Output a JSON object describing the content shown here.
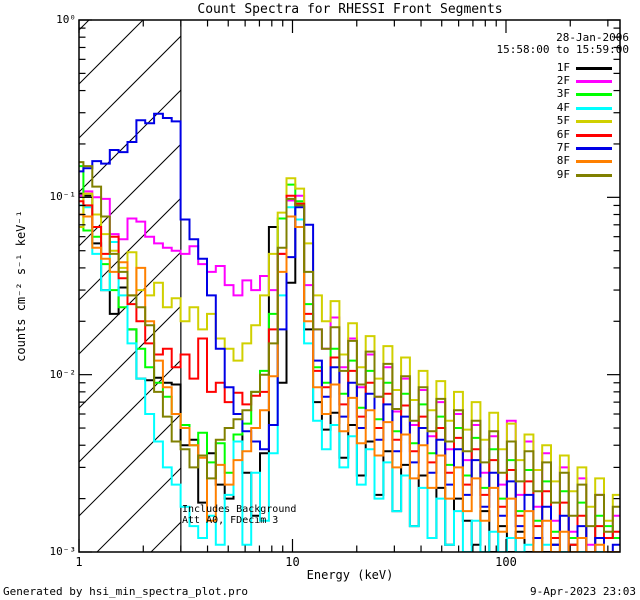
{
  "title": "Count Spectra for RHESSI Front Segments",
  "header": {
    "date": "28-Jan-2006",
    "time_range": "15:58:00 to 15:59:00"
  },
  "annotations": {
    "line1": "Includes Background",
    "line2": "Att A0, FDecim 3"
  },
  "footer": {
    "generated_by": "Generated by hsi_min_spectra_plot.pro",
    "timestamp": "9-Apr-2023 23:03"
  },
  "axes": {
    "xlabel": "Energy (keV)",
    "ylabel": "counts cm⁻² s⁻¹ keV⁻¹",
    "x_ticks": [
      {
        "value": 1,
        "label": "1"
      },
      {
        "value": 10,
        "label": "10"
      },
      {
        "value": 100,
        "label": "100"
      }
    ],
    "y_ticks": [
      {
        "value": 1,
        "label": "10⁰"
      },
      {
        "value": 0.1,
        "label": "10⁻¹"
      },
      {
        "value": 0.01,
        "label": "10⁻²"
      },
      {
        "value": 0.001,
        "label": "10⁻³"
      }
    ]
  },
  "hatch_region": {
    "from_keV": 1,
    "to_keV": 3
  },
  "chart_data": {
    "type": "line",
    "subtype": "step-histogram",
    "x_scale": "log",
    "y_scale": "log",
    "xlim": [
      1,
      342
    ],
    "ylim": [
      0.001,
      1
    ],
    "title": "Count Spectra for RHESSI Front Segments",
    "xlabel": "Energy (keV)",
    "ylabel": "counts cm^-2 s^-1 keV^-1",
    "legend_position": "top-right",
    "grid": false,
    "energies_keV": [
      1.0,
      1.1,
      1.21,
      1.33,
      1.46,
      1.61,
      1.77,
      1.95,
      2.14,
      2.36,
      2.59,
      2.85,
      3.14,
      3.45,
      3.79,
      4.17,
      4.59,
      5.05,
      5.55,
      6.11,
      6.72,
      7.39,
      8.13,
      8.94,
      9.83,
      10.8,
      11.9,
      13.1,
      14.4,
      15.8,
      17.4,
      19.1,
      21.0,
      23.1,
      25.4,
      28.0,
      30.8,
      33.8,
      37.2,
      40.9,
      45.0,
      49.5,
      54.4,
      59.9,
      65.9,
      72.4,
      79.6,
      87.6,
      96.3,
      105.9,
      116.5,
      128.1,
      140.9,
      155.0,
      170.5,
      187.5,
      206.2,
      226.8,
      249.5,
      274.4,
      301.8,
      332.0
    ],
    "series": [
      {
        "name": "1F",
        "color": "#000000",
        "counts": [
          0.105,
          0.102,
          0.055,
          0.03,
          0.022,
          0.031,
          0.018,
          0.0095,
          0.0093,
          0.0096,
          0.009,
          0.0088,
          0.004,
          0.0043,
          0.0019,
          0.0036,
          0.0024,
          0.002,
          0.0046,
          0.0028,
          0.0016,
          0.0036,
          0.068,
          0.009,
          0.033,
          0.092,
          0.018,
          0.007,
          0.0049,
          0.0061,
          0.0034,
          0.0052,
          0.0027,
          0.0042,
          0.0021,
          0.0037,
          0.0017,
          0.0031,
          0.0014,
          0.0027,
          0.0012,
          0.0023,
          0.0011,
          0.002,
          0.0015,
          0.0011,
          0.0017,
          0.001,
          0.0014,
          0.001,
          0.0013,
          0.001,
          0.0012,
          0.001,
          0.0011,
          0.001,
          0.0011,
          0.001,
          0.001,
          0.001,
          0.001,
          0.001
        ]
      },
      {
        "name": "2F",
        "color": "#ff00ff",
        "counts": [
          0.102,
          0.108,
          0.1,
          0.098,
          0.062,
          0.058,
          0.076,
          0.073,
          0.06,
          0.055,
          0.052,
          0.05,
          0.048,
          0.053,
          0.042,
          0.038,
          0.041,
          0.032,
          0.028,
          0.034,
          0.03,
          0.036,
          0.03,
          0.048,
          0.096,
          0.102,
          0.032,
          0.018,
          0.014,
          0.021,
          0.011,
          0.016,
          0.0085,
          0.013,
          0.0075,
          0.011,
          0.0062,
          0.0095,
          0.0052,
          0.0082,
          0.0045,
          0.007,
          0.0038,
          0.006,
          0.0033,
          0.0052,
          0.0028,
          0.0045,
          0.0024,
          0.0055,
          0.0021,
          0.0042,
          0.0018,
          0.0036,
          0.0015,
          0.003,
          0.0013,
          0.0026,
          0.0011,
          0.0021,
          0.0012,
          0.0016
        ]
      },
      {
        "name": "3F",
        "color": "#00ff00",
        "counts": [
          0.15,
          0.065,
          0.06,
          0.042,
          0.03,
          0.024,
          0.018,
          0.014,
          0.011,
          0.009,
          0.0075,
          0.006,
          0.0052,
          0.004,
          0.0047,
          0.0032,
          0.0041,
          0.0028,
          0.0046,
          0.0053,
          0.008,
          0.0105,
          0.022,
          0.076,
          0.118,
          0.095,
          0.025,
          0.011,
          0.009,
          0.014,
          0.0078,
          0.012,
          0.0065,
          0.0105,
          0.0056,
          0.009,
          0.0048,
          0.0078,
          0.0041,
          0.0068,
          0.0036,
          0.0058,
          0.0031,
          0.005,
          0.0027,
          0.0044,
          0.0023,
          0.0038,
          0.002,
          0.0033,
          0.0017,
          0.0029,
          0.0015,
          0.0025,
          0.0013,
          0.0022,
          0.0012,
          0.0019,
          0.001,
          0.0016,
          0.0014,
          0.0012
        ]
      },
      {
        "name": "4F",
        "color": "#00ffff",
        "counts": [
          0.09,
          0.088,
          0.048,
          0.03,
          0.056,
          0.028,
          0.015,
          0.0095,
          0.006,
          0.0042,
          0.003,
          0.0024,
          0.0018,
          0.0014,
          0.0012,
          0.0016,
          0.0011,
          0.0021,
          0.0042,
          0.0011,
          0.0028,
          0.0015,
          0.0036,
          0.028,
          0.088,
          0.075,
          0.015,
          0.0055,
          0.0038,
          0.0052,
          0.003,
          0.0045,
          0.0024,
          0.0038,
          0.002,
          0.0032,
          0.0017,
          0.0027,
          0.0014,
          0.0023,
          0.0012,
          0.002,
          0.0011,
          0.0017,
          0.001,
          0.0015,
          0.001,
          0.0013,
          0.001,
          0.0012,
          0.001,
          0.0011,
          0.001,
          0.0011,
          0.001,
          0.001,
          0.001,
          0.001,
          0.001,
          0.001,
          0.001,
          0.001
        ]
      },
      {
        "name": "5F",
        "color": "#d0d000",
        "counts": [
          0.068,
          0.105,
          0.08,
          0.062,
          0.05,
          0.04,
          0.049,
          0.03,
          0.028,
          0.033,
          0.024,
          0.027,
          0.02,
          0.024,
          0.018,
          0.022,
          0.016,
          0.014,
          0.012,
          0.015,
          0.019,
          0.028,
          0.048,
          0.082,
          0.128,
          0.112,
          0.055,
          0.028,
          0.02,
          0.026,
          0.013,
          0.0195,
          0.011,
          0.0165,
          0.0095,
          0.0145,
          0.0082,
          0.0125,
          0.0072,
          0.0105,
          0.0063,
          0.0092,
          0.0055,
          0.008,
          0.0049,
          0.007,
          0.0043,
          0.0061,
          0.0038,
          0.0053,
          0.0033,
          0.0046,
          0.0029,
          0.004,
          0.0025,
          0.0035,
          0.0022,
          0.003,
          0.0018,
          0.0026,
          0.0015,
          0.0021
        ]
      },
      {
        "name": "6F",
        "color": "#ff0000",
        "counts": [
          0.095,
          0.09,
          0.068,
          0.048,
          0.06,
          0.035,
          0.025,
          0.02,
          0.015,
          0.013,
          0.014,
          0.011,
          0.013,
          0.0095,
          0.016,
          0.008,
          0.009,
          0.007,
          0.0079,
          0.0068,
          0.0076,
          0.008,
          0.018,
          0.048,
          0.102,
          0.092,
          0.022,
          0.0105,
          0.0085,
          0.0125,
          0.0068,
          0.0105,
          0.0058,
          0.009,
          0.005,
          0.0078,
          0.0043,
          0.0067,
          0.0037,
          0.0058,
          0.0032,
          0.005,
          0.0028,
          0.0044,
          0.0024,
          0.0038,
          0.0021,
          0.0033,
          0.0018,
          0.0029,
          0.0016,
          0.0025,
          0.0014,
          0.0022,
          0.0012,
          0.0019,
          0.0011,
          0.0016,
          0.001,
          0.0014,
          0.0012,
          0.0013
        ]
      },
      {
        "name": "7F",
        "color": "#0000e6",
        "counts": [
          0.14,
          0.146,
          0.16,
          0.155,
          0.185,
          0.18,
          0.205,
          0.272,
          0.262,
          0.296,
          0.28,
          0.268,
          0.075,
          0.058,
          0.045,
          0.028,
          0.014,
          0.0085,
          0.006,
          0.0048,
          0.0042,
          0.0038,
          0.0052,
          0.018,
          0.046,
          0.088,
          0.07,
          0.012,
          0.0075,
          0.011,
          0.0058,
          0.009,
          0.005,
          0.0078,
          0.0043,
          0.0068,
          0.0037,
          0.0058,
          0.0032,
          0.005,
          0.0028,
          0.0043,
          0.0024,
          0.0038,
          0.0021,
          0.0033,
          0.0018,
          0.0028,
          0.0016,
          0.0025,
          0.0014,
          0.0021,
          0.0012,
          0.0018,
          0.0011,
          0.0016,
          0.001,
          0.0014,
          0.001,
          0.0012,
          0.001,
          0.0011
        ]
      },
      {
        "name": "8F",
        "color": "#ff8000",
        "counts": [
          0.08,
          0.078,
          0.052,
          0.045,
          0.038,
          0.043,
          0.028,
          0.04,
          0.02,
          0.012,
          0.0085,
          0.006,
          0.005,
          0.004,
          0.0034,
          0.0015,
          0.0031,
          0.0024,
          0.0033,
          0.0037,
          0.005,
          0.0063,
          0.0098,
          0.038,
          0.078,
          0.068,
          0.02,
          0.0085,
          0.006,
          0.0088,
          0.0048,
          0.0074,
          0.0041,
          0.0063,
          0.0035,
          0.0054,
          0.003,
          0.0046,
          0.0026,
          0.004,
          0.0023,
          0.0035,
          0.002,
          0.003,
          0.0017,
          0.0026,
          0.0015,
          0.0023,
          0.0013,
          0.002,
          0.0012,
          0.0017,
          0.001,
          0.0015,
          0.001,
          0.0013,
          0.001,
          0.0012,
          0.001,
          0.0011,
          0.001,
          0.001
        ]
      },
      {
        "name": "9F",
        "color": "#808000",
        "counts": [
          0.158,
          0.15,
          0.115,
          0.078,
          0.048,
          0.038,
          0.028,
          0.024,
          0.019,
          0.008,
          0.0058,
          0.0042,
          0.0038,
          0.003,
          0.0035,
          0.0026,
          0.0043,
          0.005,
          0.0056,
          0.0063,
          0.008,
          0.01,
          0.015,
          0.052,
          0.098,
          0.09,
          0.038,
          0.018,
          0.014,
          0.0185,
          0.0105,
          0.0155,
          0.0088,
          0.0135,
          0.0075,
          0.0115,
          0.0064,
          0.0098,
          0.0055,
          0.0085,
          0.0048,
          0.0073,
          0.0042,
          0.0063,
          0.0037,
          0.0055,
          0.0032,
          0.0048,
          0.0028,
          0.0042,
          0.0025,
          0.0037,
          0.0022,
          0.0032,
          0.0019,
          0.0028,
          0.0016,
          0.0024,
          0.0014,
          0.0021,
          0.0013,
          0.0018
        ]
      }
    ]
  }
}
